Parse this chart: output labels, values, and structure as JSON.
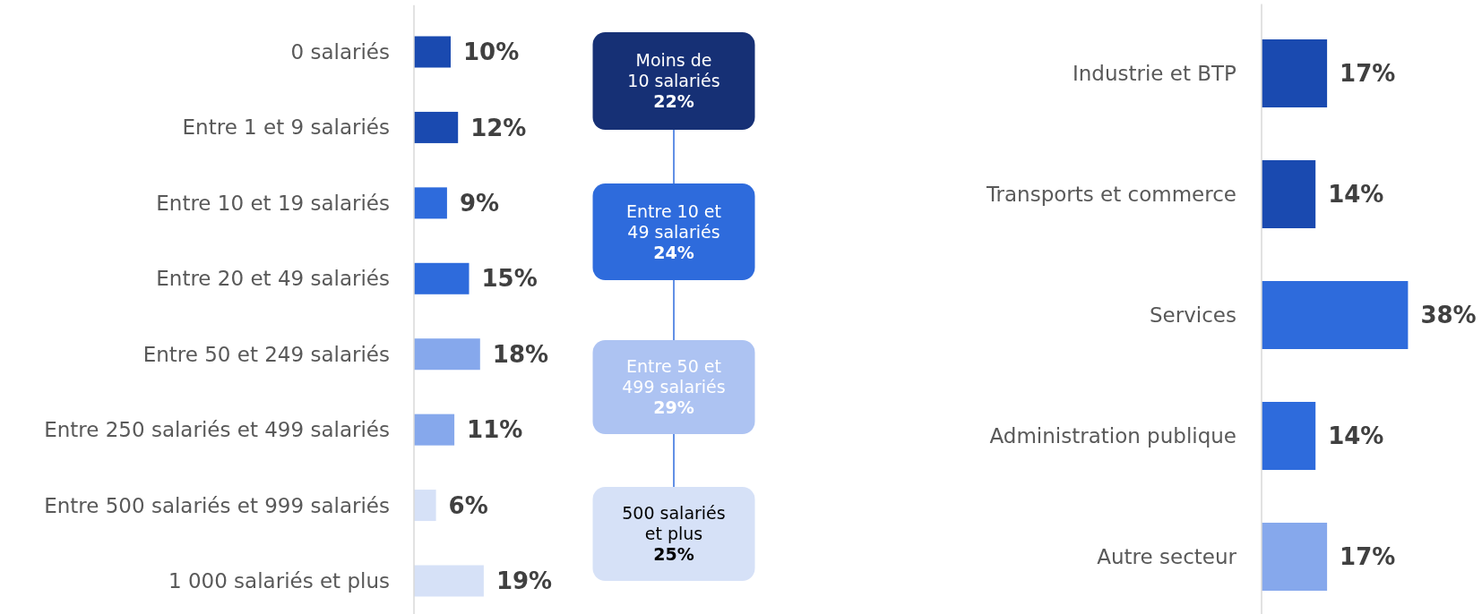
{
  "chart_data": [
    {
      "type": "bar",
      "orientation": "horizontal",
      "categories": [
        "0 salariés",
        "Entre 1 et 9 salariés",
        "Entre 10 et 19 salariés",
        "Entre 20 et 49 salariés",
        "Entre 50 et 249 salariés",
        "Entre 250 salariés et 499 salariés",
        "Entre 500 salariés et 999 salariés",
        "1 000 salariés et plus"
      ],
      "values": [
        10,
        12,
        9,
        15,
        18,
        11,
        6,
        19
      ],
      "value_labels": [
        "10%",
        "12%",
        "9%",
        "15%",
        "18%",
        "11%",
        "6%",
        "19%"
      ],
      "colors": [
        "#1a4ab0",
        "#1a4ab0",
        "#2e6bdc",
        "#2e6bdc",
        "#86a8ec",
        "#86a8ec",
        "#d6e1f7",
        "#d6e1f7"
      ]
    },
    {
      "type": "other",
      "annotations": [
        "Moins de\n10 salariés\n22%",
        "Entre 10 et\n49 salariés\n24%",
        "Entre 50 et\n499 salariés\n29%",
        "500 salariés\net plus\n25%"
      ],
      "colors": [
        "#163075",
        "#2e6bdc",
        "#adc3f2",
        "#d6e1f7"
      ]
    },
    {
      "type": "bar",
      "orientation": "horizontal",
      "categories": [
        "Industrie et BTP",
        "Transports et commerce",
        "Services",
        "Administration publique",
        "Autre secteur"
      ],
      "values": [
        17,
        14,
        38,
        14,
        17
      ],
      "value_labels": [
        "17%",
        "14%",
        "38%",
        "14%",
        "17%"
      ],
      "colors": [
        "#1a4ab0",
        "#1a4ab0",
        "#2e6bdc",
        "#2e6bdc",
        "#86a8ec"
      ]
    }
  ]
}
